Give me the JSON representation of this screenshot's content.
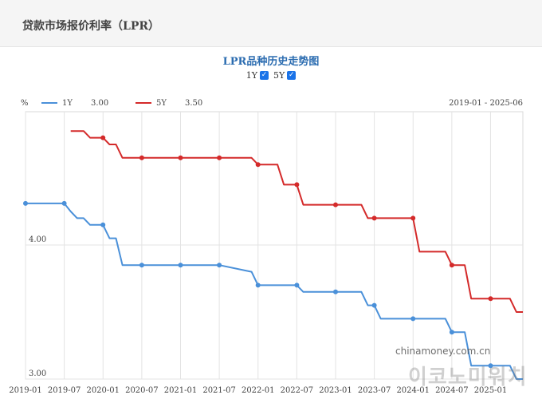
{
  "header": {
    "title": "贷款市场报价利率（LPR）"
  },
  "chart_title": "LPR品种历史走势图",
  "toggles": [
    {
      "label": "1Y",
      "checked": true
    },
    {
      "label": "5Y",
      "checked": true
    }
  ],
  "icons": {
    "checkbox": "check-icon"
  },
  "watermarks": {
    "site": "chinamoney.com.cn",
    "logo": "이코노미워치"
  },
  "chart_data": {
    "type": "line",
    "y_unit_label": "%",
    "date_range_label": "2019-01 - 2025-06",
    "x_ticks": [
      "2019-01",
      "2019-07",
      "2020-01",
      "2020-07",
      "2021-01",
      "2021-07",
      "2022-01",
      "2022-07",
      "2023-01",
      "2023-07",
      "2024-01",
      "2024-07",
      "2025-01"
    ],
    "y_ticks": [
      "4.00",
      "3.00"
    ],
    "xlim": [
      "2019-01",
      "2025-06"
    ],
    "ylim": [
      3.0,
      5.0
    ],
    "grid": true,
    "colors": {
      "1Y": "#4a90d9",
      "5Y": "#d42a2a"
    },
    "series": [
      {
        "name": "1Y",
        "legend_value": "3.00",
        "color": "#4a90d9",
        "points": [
          [
            "2019-01",
            4.31
          ],
          [
            "2019-07",
            4.31
          ],
          [
            "2019-08",
            4.25
          ],
          [
            "2019-09",
            4.2
          ],
          [
            "2019-10",
            4.2
          ],
          [
            "2019-11",
            4.15
          ],
          [
            "2019-12",
            4.15
          ],
          [
            "2020-01",
            4.15
          ],
          [
            "2020-02",
            4.05
          ],
          [
            "2020-03",
            4.05
          ],
          [
            "2020-04",
            3.85
          ],
          [
            "2020-07",
            3.85
          ],
          [
            "2021-01",
            3.85
          ],
          [
            "2021-07",
            3.85
          ],
          [
            "2021-12",
            3.8
          ],
          [
            "2022-01",
            3.7
          ],
          [
            "2022-07",
            3.7
          ],
          [
            "2022-08",
            3.65
          ],
          [
            "2023-01",
            3.65
          ],
          [
            "2023-05",
            3.65
          ],
          [
            "2023-06",
            3.55
          ],
          [
            "2023-07",
            3.55
          ],
          [
            "2023-08",
            3.45
          ],
          [
            "2024-01",
            3.45
          ],
          [
            "2024-06",
            3.45
          ],
          [
            "2024-07",
            3.35
          ],
          [
            "2024-09",
            3.35
          ],
          [
            "2024-10",
            3.1
          ],
          [
            "2025-01",
            3.1
          ],
          [
            "2025-04",
            3.1
          ],
          [
            "2025-05",
            3.0
          ],
          [
            "2025-06",
            3.0
          ]
        ]
      },
      {
        "name": "5Y",
        "legend_value": "3.50",
        "color": "#d42a2a",
        "points": [
          [
            "2019-08",
            4.85
          ],
          [
            "2019-10",
            4.85
          ],
          [
            "2019-11",
            4.8
          ],
          [
            "2020-01",
            4.8
          ],
          [
            "2020-02",
            4.75
          ],
          [
            "2020-03",
            4.75
          ],
          [
            "2020-04",
            4.65
          ],
          [
            "2020-07",
            4.65
          ],
          [
            "2021-01",
            4.65
          ],
          [
            "2021-07",
            4.65
          ],
          [
            "2021-12",
            4.65
          ],
          [
            "2022-01",
            4.6
          ],
          [
            "2022-04",
            4.6
          ],
          [
            "2022-05",
            4.45
          ],
          [
            "2022-07",
            4.45
          ],
          [
            "2022-08",
            4.3
          ],
          [
            "2023-01",
            4.3
          ],
          [
            "2023-05",
            4.3
          ],
          [
            "2023-06",
            4.2
          ],
          [
            "2023-07",
            4.2
          ],
          [
            "2024-01",
            4.2
          ],
          [
            "2024-02",
            3.95
          ],
          [
            "2024-06",
            3.95
          ],
          [
            "2024-07",
            3.85
          ],
          [
            "2024-09",
            3.85
          ],
          [
            "2024-10",
            3.6
          ],
          [
            "2025-01",
            3.6
          ],
          [
            "2025-04",
            3.6
          ],
          [
            "2025-05",
            3.5
          ],
          [
            "2025-06",
            3.5
          ]
        ]
      }
    ]
  }
}
